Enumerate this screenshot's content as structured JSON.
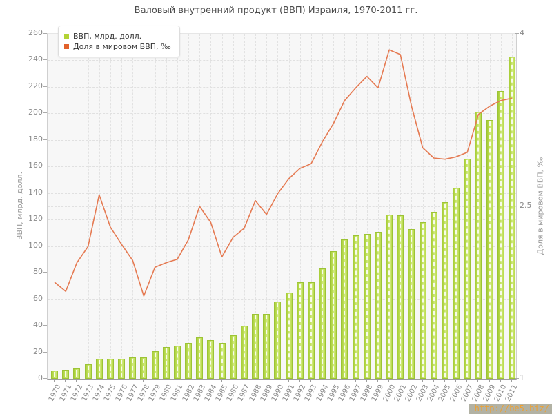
{
  "title": "Валовый внутренний продукт (ВВП) Израиля, 1970-2011 гг.",
  "watermark": "http://be5.biz/",
  "legend": [
    {
      "label": "ВВП, млрд. долл.",
      "color": "#b3d335"
    },
    {
      "label": "Доля в мировом ВВП, ‰",
      "color": "#e2622b"
    }
  ],
  "colors": {
    "bar_fill": "#b9dc4a",
    "bar_border": "#9cc335",
    "line": "#e57a52",
    "plot_background": "#f7f7f7",
    "grid": "#e0e0e0",
    "tick_text": "#8a8a8a",
    "title_text": "#4d4d4d"
  },
  "chart_data": {
    "type": "combo-bar-line",
    "categories": [
      "1970",
      "1971",
      "1972",
      "1973",
      "1974",
      "1975",
      "1976",
      "1977",
      "1978",
      "1979",
      "1980",
      "1981",
      "1982",
      "1983",
      "1984",
      "1985",
      "1986",
      "1987",
      "1988",
      "1989",
      "1990",
      "1991",
      "1992",
      "1993",
      "1994",
      "1995",
      "1996",
      "1997",
      "1998",
      "1999",
      "2000",
      "2001",
      "2002",
      "2003",
      "2004",
      "2005",
      "2006",
      "2007",
      "2008",
      "2009",
      "2010",
      "2011"
    ],
    "series": [
      {
        "name": "ВВП, млрд. долл.",
        "type": "bar",
        "axis": "left",
        "color": "#b9dc4a",
        "values": [
          6,
          7,
          8,
          11,
          15,
          15,
          15,
          16,
          16,
          21,
          24,
          25,
          27,
          31,
          29,
          27,
          33,
          40,
          49,
          49,
          58,
          65,
          73,
          73,
          83,
          96,
          105,
          108,
          109,
          111,
          124,
          123,
          113,
          118,
          126,
          133,
          144,
          166,
          201,
          195,
          217,
          243
        ]
      },
      {
        "name": "Доля в мировом ВВП, ‰",
        "type": "line",
        "axis": "right",
        "color": "#e57a52",
        "values": [
          1.84,
          1.76,
          2.01,
          2.15,
          2.6,
          2.32,
          2.17,
          2.03,
          1.72,
          1.97,
          2.01,
          2.04,
          2.21,
          2.5,
          2.36,
          2.06,
          2.23,
          2.31,
          2.55,
          2.43,
          2.61,
          2.74,
          2.83,
          2.87,
          3.06,
          3.22,
          3.42,
          3.53,
          3.63,
          3.53,
          3.86,
          3.82,
          3.37,
          3.01,
          2.92,
          2.91,
          2.93,
          2.97,
          3.3,
          3.37,
          3.42,
          3.44
        ]
      }
    ],
    "left_axis": {
      "title": "ВВП, млрд. долл.",
      "min": 0,
      "max": 260,
      "tick_step": 20
    },
    "right_axis": {
      "title": "Доля в мировом ВВП, ‰",
      "min": 1,
      "max": 4,
      "ticks": [
        1,
        2.5,
        4
      ]
    },
    "grid": "dashed",
    "legend_position": "top-left-inside"
  }
}
